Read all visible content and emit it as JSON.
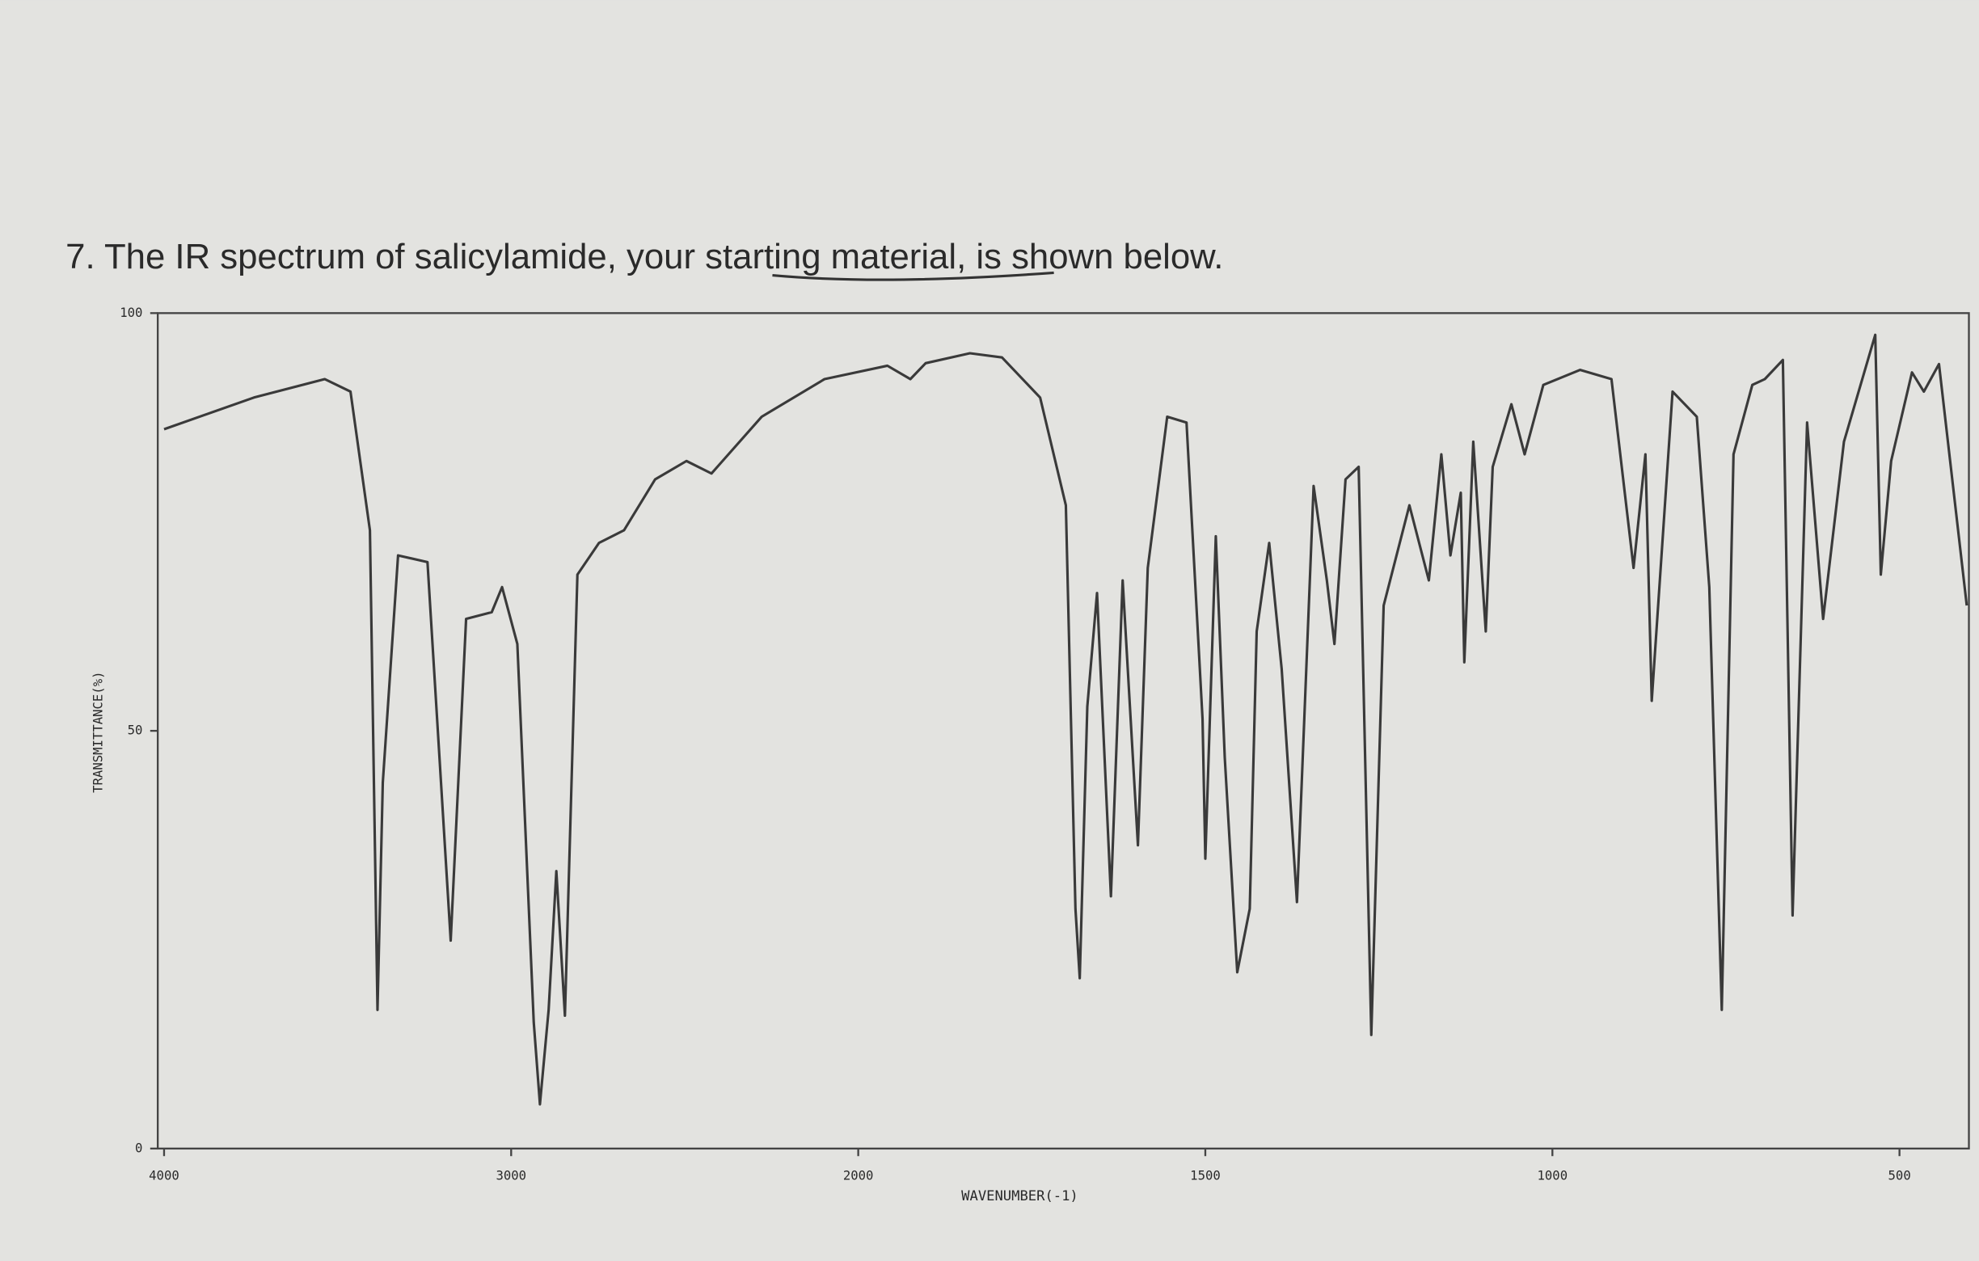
{
  "chart_data": {
    "type": "line",
    "title": "7. The IR spectrum of salicylamide, your starting material, is shown below.",
    "x_label": "WAVENUMBER(-1)",
    "y_label": "TRANSMITTANCE(%)",
    "color": "#3a3a3a",
    "xlim": [
      4000,
      400
    ],
    "xticks": [
      4000,
      3000,
      2000,
      1500,
      1000,
      500
    ],
    "ylim": [
      0,
      100
    ],
    "yticks": [
      0,
      50,
      100
    ],
    "x": [
      4000,
      3741,
      3537,
      3463,
      3407,
      3385,
      3370,
      3326,
      3241,
      3174,
      3130,
      3056,
      3026,
      2982,
      2935,
      2917,
      2892,
      2870,
      2845,
      2809,
      2747,
      2675,
      2585,
      2495,
      2423,
      2278,
      2097,
      1958,
      1925,
      1903,
      1839,
      1793,
      1738,
      1701,
      1687,
      1681,
      1670,
      1656,
      1636,
      1619,
      1597,
      1583,
      1555,
      1527,
      1504,
      1500,
      1485,
      1472,
      1454,
      1436,
      1426,
      1408,
      1390,
      1368,
      1344,
      1325,
      1314,
      1298,
      1279,
      1261,
      1243,
      1206,
      1178,
      1160,
      1147,
      1132,
      1127,
      1114,
      1096,
      1086,
      1059,
      1040,
      1013,
      960,
      915,
      883,
      866,
      857,
      827,
      792,
      774,
      756,
      739,
      712,
      694,
      668,
      654,
      633,
      610,
      580,
      535,
      527,
      512,
      482,
      465,
      443,
      403
    ],
    "values": [
      86.1,
      89.9,
      92.1,
      90.6,
      74,
      16.6,
      43.8,
      71,
      70.2,
      24.9,
      63.4,
      64.2,
      67.2,
      60.4,
      15.1,
      5.3,
      16.6,
      33.2,
      15.9,
      68.7,
      72.5,
      74,
      80.1,
      82.3,
      80.8,
      87.6,
      92.1,
      93.7,
      92.1,
      94,
      95.2,
      94.7,
      89.9,
      77,
      28.7,
      20.4,
      52.9,
      66.5,
      30.2,
      68,
      36.3,
      69.5,
      87.6,
      86.9,
      51.4,
      34.7,
      73.3,
      46.8,
      21.1,
      28.7,
      61.9,
      72.5,
      57.4,
      29.5,
      79.3,
      68,
      60.4,
      80.1,
      81.6,
      13.6,
      65,
      77,
      68,
      83.1,
      71,
      78.5,
      58.2,
      84.6,
      61.9,
      81.6,
      89.1,
      83.1,
      91.4,
      93.2,
      92.1,
      69.5,
      83.1,
      53.6,
      90.6,
      87.6,
      67.2,
      16.6,
      83.1,
      91.4,
      92.1,
      94.4,
      27.9,
      86.9,
      63.4,
      84.6,
      97.4,
      68.7,
      82.3,
      92.9,
      90.6,
      93.9,
      65
    ]
  }
}
